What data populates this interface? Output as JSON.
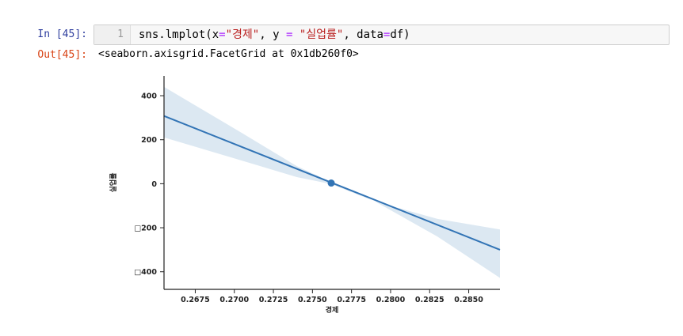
{
  "cell": {
    "in_prompt": "In [45]:",
    "out_prompt": "Out[45]:",
    "line_number": "1",
    "code": {
      "p1": "sns.lmplot(x",
      "eq1": "=",
      "s1": "\"경제\"",
      "p2": ", y ",
      "eq2": "=",
      "p3": " ",
      "s2": "\"실업률\"",
      "p4": ", data",
      "eq3": "=",
      "p5": "df)"
    },
    "output": "<seaborn.axisgrid.FacetGrid at 0x1db260f0>"
  },
  "chart_data": {
    "type": "scatter",
    "fit": "regression line with 95% confidence band",
    "xlabel": "경제",
    "ylabel": "실업률",
    "xlim": [
      0.2655,
      0.287
    ],
    "ylim": [
      -480,
      490
    ],
    "x_ticks": [
      "0.2675",
      "0.2700",
      "0.2725",
      "0.2750",
      "0.2775",
      "0.2800",
      "0.2825",
      "0.2850"
    ],
    "y_ticks": [
      "400",
      "200",
      "0",
      "□200",
      "□400"
    ],
    "points": [
      {
        "x": 0.2762,
        "y": 3
      }
    ],
    "line": {
      "x": [
        0.2655,
        0.287
      ],
      "y": [
        308,
        -300
      ]
    },
    "band": {
      "x": [
        0.2655,
        0.2705,
        0.274,
        0.2762,
        0.279,
        0.283,
        0.287
      ],
      "upper": [
        440,
        230,
        80,
        8,
        -80,
        -160,
        -208
      ],
      "lower": [
        210,
        105,
        30,
        -2,
        -80,
        -240,
        -428
      ]
    },
    "colors": {
      "line": "#3274b5",
      "band": "#dce8f2"
    },
    "grid": false
  }
}
